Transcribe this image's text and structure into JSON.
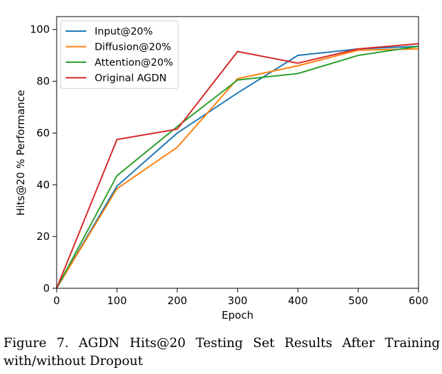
{
  "chart_data": {
    "type": "line",
    "title": "",
    "xlabel": "Epoch",
    "ylabel": "Hits@20 % Performance",
    "xlim": [
      0,
      600
    ],
    "ylim": [
      0,
      105
    ],
    "x": [
      0,
      100,
      200,
      300,
      400,
      500,
      600
    ],
    "xticks": [
      0,
      100,
      200,
      300,
      400,
      500,
      600
    ],
    "xtick_labels": [
      "0",
      "100",
      "200",
      "300",
      "400",
      "500",
      "600"
    ],
    "yticks": [
      0,
      20,
      40,
      60,
      80,
      100
    ],
    "ytick_labels": [
      "0",
      "20",
      "40",
      "60",
      "80",
      "100"
    ],
    "grid": false,
    "legend_position": "top-left",
    "series": [
      {
        "name": "Input@20%",
        "color": "#1f77b4",
        "values": [
          0,
          39.5,
          60,
          75.5,
          90,
          92.5,
          93.5
        ]
      },
      {
        "name": "Diffusion@20%",
        "color": "#ff7f0e",
        "values": [
          0,
          38.5,
          54.5,
          81,
          86,
          92,
          92.5
        ]
      },
      {
        "name": "Attention@20%",
        "color": "#2ca02c",
        "values": [
          0,
          43.5,
          62.5,
          80.5,
          83,
          90,
          93.5
        ]
      },
      {
        "name": "Original AGDN",
        "color": "#d62728",
        "values": [
          0,
          57.5,
          61.5,
          91.5,
          87,
          92.5,
          94.5
        ]
      }
    ]
  },
  "caption": "Figure 7. AGDN Hits@20 Testing Set Results After Training with/without Dropout"
}
